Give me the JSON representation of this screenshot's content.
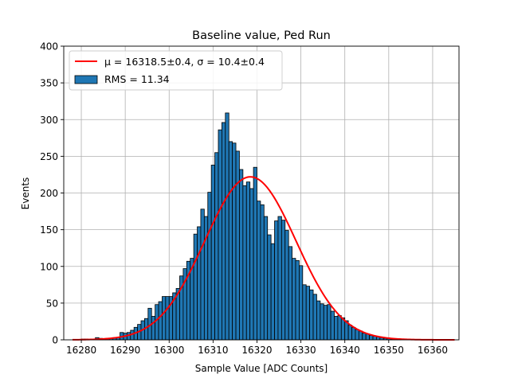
{
  "chart_data": {
    "type": "bar",
    "title": "Baseline value, Ped Run",
    "xlabel": "Sample Value [ADC Counts]",
    "ylabel": "Events",
    "xlim": [
      16276,
      16366
    ],
    "ylim": [
      0,
      400
    ],
    "grid": true,
    "legend_placement": "top-left",
    "x_ticks": [
      16280,
      16290,
      16300,
      16310,
      16320,
      16330,
      16340,
      16350,
      16360
    ],
    "y_ticks": [
      0,
      50,
      100,
      150,
      200,
      250,
      300,
      350,
      400
    ],
    "bins": {
      "start": 16280,
      "width": 0.8,
      "counts": [
        1,
        1,
        0,
        1,
        3,
        2,
        1,
        2,
        2,
        3,
        3,
        10,
        9,
        10,
        13,
        17,
        21,
        26,
        29,
        43,
        32,
        48,
        52,
        59,
        59,
        59,
        64,
        70,
        87,
        97,
        107,
        111,
        144,
        154,
        178,
        168,
        201,
        238,
        255,
        286,
        296,
        309,
        270,
        268,
        257,
        232,
        210,
        215,
        206,
        235,
        189,
        184,
        168,
        143,
        131,
        162,
        168,
        163,
        149,
        127,
        111,
        108,
        101,
        75,
        73,
        68,
        62,
        53,
        49,
        47,
        48,
        39,
        32,
        33,
        30,
        26,
        20,
        17,
        14,
        12,
        9,
        8,
        6,
        5,
        4,
        3,
        2,
        2,
        1,
        1,
        1
      ]
    },
    "series": [
      {
        "name": "RMS = 11.34",
        "kind": "histogram",
        "color": "#1f77b4"
      },
      {
        "name": "$\\mu = 16318.5 \\pm 0.4$, $\\sigma = 10.4 \\pm 0.4$",
        "kind": "gaussian_fit",
        "color": "#ff0000",
        "mu": 16318.5,
        "sigma": 10.4,
        "amplitude": 222,
        "x_range": [
          16278,
          16365
        ]
      }
    ]
  },
  "legend": {
    "fit_prefix": "μ = 16318.5±0.4, σ = 10.4±0.4",
    "hist_label": "RMS = 11.34"
  }
}
